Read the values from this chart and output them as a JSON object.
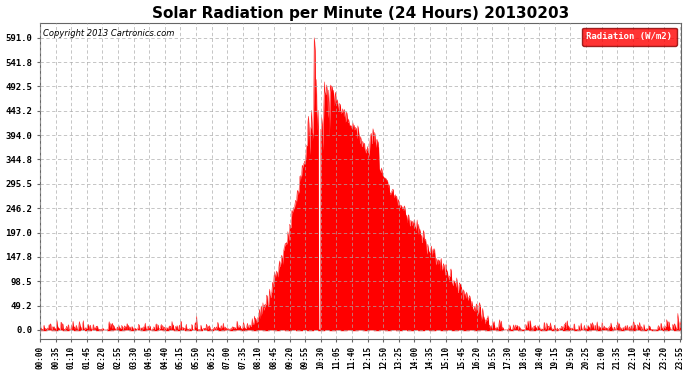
{
  "title": "Solar Radiation per Minute (24 Hours) 20130203",
  "copyright_text": "Copyright 2013 Cartronics.com",
  "legend_label": "Radiation (W/m2)",
  "yticks": [
    0.0,
    49.2,
    98.5,
    147.8,
    197.0,
    246.2,
    295.5,
    344.8,
    394.0,
    443.2,
    492.5,
    541.8,
    591.0
  ],
  "ymax": 591.0,
  "ymin": 0.0,
  "fill_color": "#FF0000",
  "bg_color": "#FFFFFF",
  "grid_color": "#AAAAAA",
  "title_fontsize": 11,
  "total_minutes": 1440,
  "sunrise_minute": 455,
  "sunset_minute": 1025,
  "peak_minute": 630,
  "peak_value": 591.0
}
